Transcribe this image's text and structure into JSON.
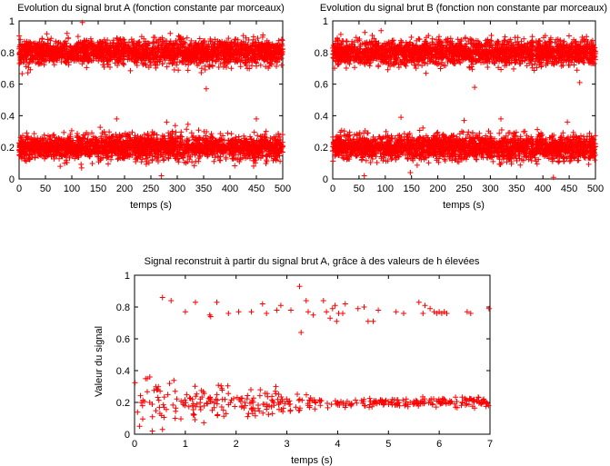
{
  "chart_data": [
    {
      "type": "scatter",
      "title": "Evolution du signal brut A (fonction constante par morceaux)",
      "xlabel": "temps (s)",
      "ylabel": "",
      "xlim": [
        0,
        500
      ],
      "ylim": [
        0,
        1
      ],
      "xticks": [
        "0",
        "50",
        "100",
        "150",
        "200",
        "250",
        "300",
        "350",
        "400",
        "450",
        "500"
      ],
      "yticks": [
        "0",
        "0.2",
        "0.4",
        "0.6",
        "0.8",
        "1"
      ],
      "marker": "plus",
      "color": "#ff0000",
      "series": [
        {
          "x_range": [
            0,
            500
          ],
          "center": 0.8,
          "spread": 0.07,
          "count": 2200
        },
        {
          "x_range": [
            0,
            500
          ],
          "center": 0.2,
          "spread": 0.07,
          "count": 2200
        }
      ],
      "outliers": [
        [
          120,
          0.99
        ],
        [
          355,
          0.57
        ],
        [
          270,
          0.02
        ],
        [
          450,
          0.38
        ],
        [
          185,
          0.38
        ],
        [
          280,
          0.36
        ]
      ]
    },
    {
      "type": "scatter",
      "title": "Evolution du signal brut B (fonction non constante par morceaux)",
      "xlabel": "temps (s)",
      "ylabel": "",
      "xlim": [
        0,
        500
      ],
      "ylim": [
        0,
        1
      ],
      "xticks": [
        "0",
        "50",
        "100",
        "150",
        "200",
        "250",
        "300",
        "350",
        "400",
        "450",
        "500"
      ],
      "yticks": [
        "0",
        "0.2",
        "0.4",
        "0.6",
        "0.8",
        "1"
      ],
      "marker": "plus",
      "color": "#ff0000",
      "series": [
        {
          "x_range": [
            0,
            500
          ],
          "center": 0.8,
          "spread": 0.07,
          "count": 2200
        },
        {
          "x_range": [
            0,
            500
          ],
          "center": 0.2,
          "spread": 0.07,
          "count": 2200
        }
      ],
      "outliers": [
        [
          270,
          0.58
        ],
        [
          470,
          0.61
        ],
        [
          130,
          0.39
        ],
        [
          320,
          0.38
        ],
        [
          250,
          0.37
        ],
        [
          420,
          0.01
        ],
        [
          60,
          0.02
        ]
      ]
    },
    {
      "type": "scatter",
      "title": "Signal reconstruit à partir du signal brut A, grâce à des valeurs de h élevées",
      "xlabel": "temps (s)",
      "ylabel": "Valeur du signal",
      "xlim": [
        0,
        7
      ],
      "ylim": [
        0,
        1
      ],
      "xticks": [
        "0",
        "1",
        "2",
        "3",
        "4",
        "5",
        "6",
        "7"
      ],
      "yticks": [
        "0",
        "0.2",
        "0.4",
        "0.6",
        "0.8",
        "1"
      ],
      "marker": "plus",
      "color": "#ff0000",
      "high_points": [
        [
          0.55,
          0.86
        ],
        [
          0.72,
          0.84
        ],
        [
          1.0,
          0.77
        ],
        [
          1.2,
          0.83
        ],
        [
          1.48,
          0.75
        ],
        [
          1.5,
          0.74
        ],
        [
          1.62,
          0.83
        ],
        [
          1.85,
          0.76
        ],
        [
          2.05,
          0.77
        ],
        [
          2.3,
          0.77
        ],
        [
          2.52,
          0.82
        ],
        [
          2.6,
          0.76
        ],
        [
          2.8,
          0.78
        ],
        [
          2.88,
          0.81
        ],
        [
          3.08,
          0.78
        ],
        [
          3.25,
          0.93
        ],
        [
          3.28,
          0.64
        ],
        [
          3.38,
          0.84
        ],
        [
          3.42,
          0.77
        ],
        [
          3.52,
          0.75
        ],
        [
          3.72,
          0.84
        ],
        [
          3.78,
          0.77
        ],
        [
          3.85,
          0.73
        ],
        [
          3.9,
          0.79
        ],
        [
          3.95,
          0.81
        ],
        [
          3.98,
          0.71
        ],
        [
          4.02,
          0.76
        ],
        [
          4.1,
          0.76
        ],
        [
          4.15,
          0.82
        ],
        [
          4.4,
          0.79
        ],
        [
          4.52,
          0.8
        ],
        [
          4.6,
          0.71
        ],
        [
          4.7,
          0.71
        ],
        [
          4.8,
          0.78
        ],
        [
          5.15,
          0.77
        ],
        [
          5.3,
          0.76
        ],
        [
          5.6,
          0.83
        ],
        [
          5.68,
          0.76
        ],
        [
          5.72,
          0.81
        ],
        [
          5.82,
          0.79
        ],
        [
          5.9,
          0.77
        ],
        [
          5.95,
          0.76
        ],
        [
          6.0,
          0.77
        ],
        [
          6.05,
          0.76
        ],
        [
          6.1,
          0.77
        ],
        [
          6.15,
          0.76
        ],
        [
          6.55,
          0.77
        ],
        [
          6.62,
          0.76
        ],
        [
          6.98,
          0.79
        ]
      ],
      "low_band": {
        "x_range": [
          0,
          7
        ],
        "start_spread": 0.08,
        "end_spread": 0.015,
        "center": 0.2,
        "count": 380
      },
      "low_extras": [
        [
          0.1,
          0.05
        ],
        [
          0.35,
          0.02
        ],
        [
          0.25,
          0.35
        ],
        [
          0.3,
          0.36
        ],
        [
          0.55,
          0.03
        ],
        [
          0.8,
          0.1
        ]
      ]
    }
  ]
}
